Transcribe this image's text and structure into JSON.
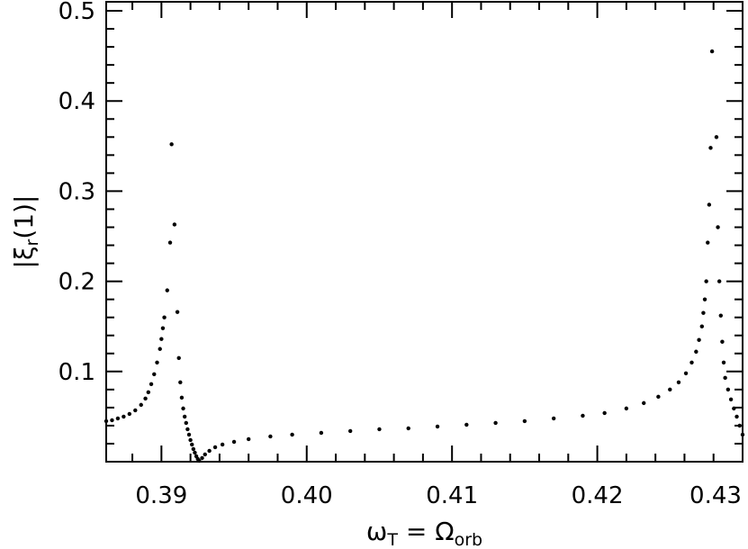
{
  "chart_data": {
    "type": "scatter",
    "title": "",
    "xlabel": {
      "main": "ω",
      "sub": "T",
      "eq": " = ",
      "main2": "Ω",
      "sub2": "orb"
    },
    "ylabel": {
      "pre": "|ξ",
      "sub": "r",
      "post": "(1)|"
    },
    "xlim": [
      0.3862,
      0.43
    ],
    "ylim": [
      0.0,
      0.51
    ],
    "x_ticks": [
      0.39,
      0.4,
      0.41,
      0.42,
      0.43
    ],
    "x_tick_labels": [
      "0.39",
      "0.40",
      "0.41",
      "0.42",
      "0.43"
    ],
    "y_ticks": [
      0.1,
      0.2,
      0.3,
      0.4,
      0.5
    ],
    "y_tick_labels": [
      "0.1",
      "0.2",
      "0.3",
      "0.4",
      "0.5"
    ],
    "grid": false,
    "marker_color": "#000000",
    "series": [
      {
        "points": [
          [
            0.3862,
            0.045
          ],
          [
            0.3866,
            0.046
          ],
          [
            0.387,
            0.048
          ],
          [
            0.3874,
            0.05
          ],
          [
            0.3878,
            0.053
          ],
          [
            0.3882,
            0.057
          ],
          [
            0.3886,
            0.063
          ],
          [
            0.3889,
            0.07
          ],
          [
            0.3891,
            0.077
          ],
          [
            0.3893,
            0.086
          ],
          [
            0.3895,
            0.097
          ],
          [
            0.3897,
            0.11
          ],
          [
            0.3899,
            0.125
          ],
          [
            0.39,
            0.136
          ],
          [
            0.3901,
            0.148
          ],
          [
            0.3902,
            0.16
          ],
          [
            0.3904,
            0.19
          ],
          [
            0.3906,
            0.243
          ],
          [
            0.3907,
            0.352
          ],
          [
            0.3909,
            0.263
          ],
          [
            0.3911,
            0.166
          ],
          [
            0.3912,
            0.115
          ],
          [
            0.3913,
            0.088
          ],
          [
            0.3914,
            0.071
          ],
          [
            0.3915,
            0.059
          ],
          [
            0.3916,
            0.05
          ],
          [
            0.3917,
            0.043
          ],
          [
            0.3918,
            0.036
          ],
          [
            0.3919,
            0.03
          ],
          [
            0.392,
            0.024
          ],
          [
            0.3921,
            0.019
          ],
          [
            0.3922,
            0.014
          ],
          [
            0.3923,
            0.01
          ],
          [
            0.3924,
            0.006
          ],
          [
            0.3925,
            0.003
          ],
          [
            0.3926,
            0.001
          ],
          [
            0.3928,
            0.004
          ],
          [
            0.393,
            0.008
          ],
          [
            0.3933,
            0.012
          ],
          [
            0.3937,
            0.016
          ],
          [
            0.3942,
            0.019
          ],
          [
            0.395,
            0.022
          ],
          [
            0.396,
            0.025
          ],
          [
            0.3975,
            0.028
          ],
          [
            0.399,
            0.03
          ],
          [
            0.401,
            0.032
          ],
          [
            0.403,
            0.034
          ],
          [
            0.405,
            0.036
          ],
          [
            0.407,
            0.037
          ],
          [
            0.409,
            0.039
          ],
          [
            0.411,
            0.041
          ],
          [
            0.413,
            0.043
          ],
          [
            0.415,
            0.045
          ],
          [
            0.417,
            0.048
          ],
          [
            0.419,
            0.051
          ],
          [
            0.4205,
            0.054
          ],
          [
            0.422,
            0.059
          ],
          [
            0.4232,
            0.065
          ],
          [
            0.4242,
            0.072
          ],
          [
            0.425,
            0.08
          ],
          [
            0.4256,
            0.088
          ],
          [
            0.4261,
            0.098
          ],
          [
            0.4265,
            0.11
          ],
          [
            0.4268,
            0.122
          ],
          [
            0.427,
            0.135
          ],
          [
            0.4272,
            0.15
          ],
          [
            0.4273,
            0.165
          ],
          [
            0.4274,
            0.18
          ],
          [
            0.4275,
            0.2
          ],
          [
            0.4276,
            0.243
          ],
          [
            0.4277,
            0.285
          ],
          [
            0.4278,
            0.348
          ],
          [
            0.4279,
            0.455
          ],
          [
            0.4282,
            0.36
          ],
          [
            0.4283,
            0.26
          ],
          [
            0.4284,
            0.2
          ],
          [
            0.4285,
            0.162
          ],
          [
            0.4286,
            0.133
          ],
          [
            0.4287,
            0.11
          ],
          [
            0.4288,
            0.093
          ],
          [
            0.429,
            0.08
          ],
          [
            0.4292,
            0.069
          ],
          [
            0.4294,
            0.059
          ],
          [
            0.4296,
            0.05
          ],
          [
            0.4298,
            0.04
          ],
          [
            0.43,
            0.03
          ]
        ]
      }
    ]
  }
}
